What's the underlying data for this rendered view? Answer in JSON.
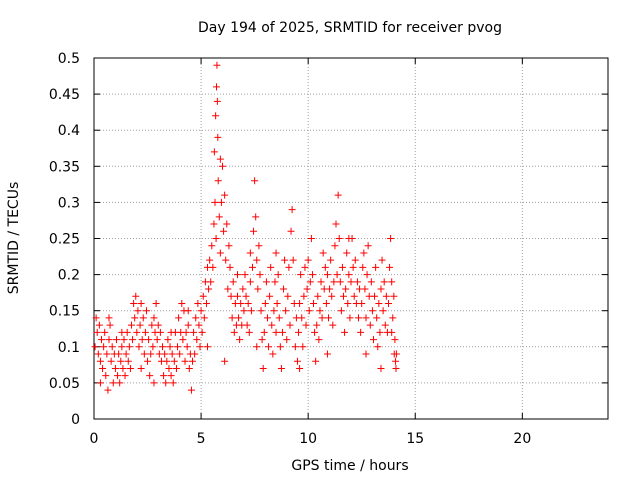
{
  "chart_data": {
    "type": "scatter",
    "title": "Day 194 of 2025, SRMTID for receiver pvog",
    "xlabel": "GPS time / hours",
    "ylabel": "SRMTID / TECUs",
    "xlim": [
      0,
      24
    ],
    "ylim": [
      0,
      0.5
    ],
    "xticks": [
      0,
      5,
      10,
      15,
      20
    ],
    "xtick_labels": [
      "0",
      "5",
      "10",
      "15",
      "20"
    ],
    "yticks": [
      0,
      0.05,
      0.1,
      0.15,
      0.2,
      0.25,
      0.3,
      0.35,
      0.4,
      0.45,
      0.5
    ],
    "ytick_labels": [
      "0",
      "0.05",
      "0.1",
      "0.15",
      "0.2",
      "0.25",
      "0.3",
      "0.35",
      "0.4",
      "0.45",
      "0.5"
    ],
    "grid": true,
    "marker": "+",
    "series": [
      {
        "name": "SRMTID",
        "color": "#ff0000",
        "points": [
          [
            0.05,
            0.1
          ],
          [
            0.1,
            0.14
          ],
          [
            0.15,
            0.12
          ],
          [
            0.2,
            0.09
          ],
          [
            0.25,
            0.13
          ],
          [
            0.3,
            0.08
          ],
          [
            0.35,
            0.11
          ],
          [
            0.4,
            0.07
          ],
          [
            0.45,
            0.1
          ],
          [
            0.5,
            0.12
          ],
          [
            0.55,
            0.06
          ],
          [
            0.6,
            0.09
          ],
          [
            0.65,
            0.04
          ],
          [
            0.7,
            0.11
          ],
          [
            0.75,
            0.13
          ],
          [
            0.8,
            0.08
          ],
          [
            0.85,
            0.1
          ],
          [
            0.9,
            0.05
          ],
          [
            0.95,
            0.09
          ],
          [
            1.0,
            0.07
          ],
          [
            1.05,
            0.11
          ],
          [
            1.1,
            0.06
          ],
          [
            1.15,
            0.09
          ],
          [
            1.2,
            0.05
          ],
          [
            1.25,
            0.08
          ],
          [
            1.3,
            0.1
          ],
          [
            1.35,
            0.07
          ],
          [
            1.4,
            0.11
          ],
          [
            1.45,
            0.06
          ],
          [
            1.5,
            0.09
          ],
          [
            1.55,
            0.12
          ],
          [
            1.6,
            0.08
          ],
          [
            1.65,
            0.1
          ],
          [
            1.7,
            0.07
          ],
          [
            1.75,
            0.13
          ],
          [
            1.8,
            0.11
          ],
          [
            1.85,
            0.16
          ],
          [
            1.9,
            0.14
          ],
          [
            1.95,
            0.17
          ],
          [
            2.0,
            0.12
          ],
          [
            2.05,
            0.15
          ],
          [
            2.1,
            0.1
          ],
          [
            2.15,
            0.13
          ],
          [
            2.2,
            0.16
          ],
          [
            2.25,
            0.11
          ],
          [
            2.3,
            0.14
          ],
          [
            2.35,
            0.09
          ],
          [
            2.4,
            0.12
          ],
          [
            2.45,
            0.15
          ],
          [
            2.5,
            0.08
          ],
          [
            2.55,
            0.11
          ],
          [
            2.6,
            0.06
          ],
          [
            2.65,
            0.09
          ],
          [
            2.7,
            0.13
          ],
          [
            2.75,
            0.1
          ],
          [
            2.8,
            0.14
          ],
          [
            2.85,
            0.12
          ],
          [
            2.9,
            0.16
          ],
          [
            2.95,
            0.11
          ],
          [
            3.0,
            0.13
          ],
          [
            3.05,
            0.09
          ],
          [
            3.1,
            0.12
          ],
          [
            3.15,
            0.08
          ],
          [
            3.2,
            0.1
          ],
          [
            3.25,
            0.06
          ],
          [
            3.3,
            0.09
          ],
          [
            3.35,
            0.05
          ],
          [
            3.4,
            0.08
          ],
          [
            3.45,
            0.11
          ],
          [
            3.5,
            0.07
          ],
          [
            3.55,
            0.1
          ],
          [
            3.6,
            0.06
          ],
          [
            3.65,
            0.09
          ],
          [
            3.7,
            0.05
          ],
          [
            3.75,
            0.08
          ],
          [
            3.8,
            0.12
          ],
          [
            3.85,
            0.07
          ],
          [
            3.9,
            0.1
          ],
          [
            3.95,
            0.14
          ],
          [
            4.0,
            0.09
          ],
          [
            4.05,
            0.12
          ],
          [
            4.1,
            0.16
          ],
          [
            4.15,
            0.11
          ],
          [
            4.2,
            0.15
          ],
          [
            4.25,
            0.08
          ],
          [
            4.3,
            0.12
          ],
          [
            4.35,
            0.1
          ],
          [
            4.4,
            0.13
          ],
          [
            4.45,
            0.07
          ],
          [
            4.5,
            0.09
          ],
          [
            4.55,
            0.04
          ],
          [
            4.6,
            0.08
          ],
          [
            4.65,
            0.12
          ],
          [
            4.7,
            0.09
          ],
          [
            4.75,
            0.14
          ],
          [
            4.8,
            0.11
          ],
          [
            4.85,
            0.16
          ],
          [
            4.9,
            0.13
          ],
          [
            4.95,
            0.1
          ],
          [
            5.0,
            0.15
          ],
          [
            5.05,
            0.12
          ],
          [
            5.1,
            0.17
          ],
          [
            5.15,
            0.14
          ],
          [
            5.2,
            0.19
          ],
          [
            5.25,
            0.16
          ],
          [
            5.3,
            0.21
          ],
          [
            5.35,
            0.18
          ],
          [
            5.4,
            0.22
          ],
          [
            5.45,
            0.19
          ],
          [
            5.5,
            0.24
          ],
          [
            5.55,
            0.21
          ],
          [
            5.6,
            0.27
          ],
          [
            5.62,
            0.37
          ],
          [
            5.65,
            0.3
          ],
          [
            5.68,
            0.42
          ],
          [
            5.7,
            0.25
          ],
          [
            5.72,
            0.46
          ],
          [
            5.74,
            0.49
          ],
          [
            5.76,
            0.44
          ],
          [
            5.78,
            0.39
          ],
          [
            5.8,
            0.33
          ],
          [
            5.85,
            0.28
          ],
          [
            5.9,
            0.23
          ],
          [
            5.95,
            0.3
          ],
          [
            6.0,
            0.35
          ],
          [
            6.05,
            0.26
          ],
          [
            6.1,
            0.31
          ],
          [
            6.15,
            0.22
          ],
          [
            6.2,
            0.27
          ],
          [
            6.25,
            0.18
          ],
          [
            6.3,
            0.24
          ],
          [
            6.35,
            0.21
          ],
          [
            6.4,
            0.17
          ],
          [
            6.45,
            0.14
          ],
          [
            6.5,
            0.19
          ],
          [
            6.55,
            0.12
          ],
          [
            6.6,
            0.16
          ],
          [
            6.65,
            0.13
          ],
          [
            6.7,
            0.17
          ],
          [
            6.75,
            0.14
          ],
          [
            6.8,
            0.11
          ],
          [
            6.85,
            0.16
          ],
          [
            6.9,
            0.13
          ],
          [
            6.95,
            0.18
          ],
          [
            7.0,
            0.15
          ],
          [
            7.05,
            0.2
          ],
          [
            7.1,
            0.17
          ],
          [
            7.15,
            0.13
          ],
          [
            7.2,
            0.16
          ],
          [
            7.25,
            0.12
          ],
          [
            7.3,
            0.19
          ],
          [
            7.35,
            0.15
          ],
          [
            7.4,
            0.21
          ],
          [
            7.45,
            0.26
          ],
          [
            7.5,
            0.33
          ],
          [
            7.55,
            0.28
          ],
          [
            7.6,
            0.22
          ],
          [
            7.65,
            0.18
          ],
          [
            7.7,
            0.24
          ],
          [
            7.75,
            0.2
          ],
          [
            7.8,
            0.15
          ],
          [
            7.85,
            0.11
          ],
          [
            7.9,
            0.07
          ],
          [
            7.95,
            0.12
          ],
          [
            8.0,
            0.16
          ],
          [
            8.05,
            0.19
          ],
          [
            8.1,
            0.14
          ],
          [
            8.15,
            0.1
          ],
          [
            8.2,
            0.17
          ],
          [
            8.25,
            0.21
          ],
          [
            8.3,
            0.13
          ],
          [
            8.35,
            0.09
          ],
          [
            8.4,
            0.15
          ],
          [
            8.45,
            0.19
          ],
          [
            8.5,
            0.12
          ],
          [
            8.55,
            0.16
          ],
          [
            8.6,
            0.2
          ],
          [
            8.65,
            0.14
          ],
          [
            8.7,
            0.1
          ],
          [
            8.75,
            0.07
          ],
          [
            8.8,
            0.12
          ],
          [
            8.85,
            0.18
          ],
          [
            8.9,
            0.22
          ],
          [
            8.95,
            0.15
          ],
          [
            9.0,
            0.11
          ],
          [
            9.05,
            0.17
          ],
          [
            9.1,
            0.21
          ],
          [
            9.15,
            0.13
          ],
          [
            9.2,
            0.26
          ],
          [
            9.25,
            0.29
          ],
          [
            9.3,
            0.22
          ],
          [
            9.35,
            0.16
          ],
          [
            9.4,
            0.1
          ],
          [
            9.45,
            0.14
          ],
          [
            9.5,
            0.08
          ],
          [
            9.55,
            0.12
          ],
          [
            9.6,
            0.16
          ],
          [
            9.65,
            0.2
          ],
          [
            9.7,
            0.14
          ],
          [
            9.75,
            0.1
          ],
          [
            9.8,
            0.17
          ],
          [
            9.85,
            0.21
          ],
          [
            9.9,
            0.13
          ],
          [
            9.95,
            0.18
          ],
          [
            10.0,
            0.22
          ],
          [
            10.05,
            0.15
          ],
          [
            10.1,
            0.19
          ],
          [
            10.15,
            0.25
          ],
          [
            10.2,
            0.2
          ],
          [
            10.25,
            0.16
          ],
          [
            10.3,
            0.12
          ],
          [
            10.35,
            0.08
          ],
          [
            10.4,
            0.13
          ],
          [
            10.45,
            0.17
          ],
          [
            10.5,
            0.11
          ],
          [
            10.55,
            0.15
          ],
          [
            10.6,
            0.19
          ],
          [
            10.65,
            0.14
          ],
          [
            10.7,
            0.23
          ],
          [
            10.75,
            0.18
          ],
          [
            10.8,
            0.21
          ],
          [
            10.85,
            0.16
          ],
          [
            10.9,
            0.2
          ],
          [
            10.95,
            0.14
          ],
          [
            11.0,
            0.18
          ],
          [
            11.05,
            0.22
          ],
          [
            11.1,
            0.17
          ],
          [
            11.15,
            0.13
          ],
          [
            11.2,
            0.19
          ],
          [
            11.25,
            0.24
          ],
          [
            11.3,
            0.27
          ],
          [
            11.35,
            0.2
          ],
          [
            11.4,
            0.31
          ],
          [
            11.45,
            0.25
          ],
          [
            11.5,
            0.19
          ],
          [
            11.55,
            0.15
          ],
          [
            11.6,
            0.21
          ],
          [
            11.65,
            0.17
          ],
          [
            11.7,
            0.12
          ],
          [
            11.75,
            0.18
          ],
          [
            11.8,
            0.23
          ],
          [
            11.85,
            0.16
          ],
          [
            11.9,
            0.2
          ],
          [
            11.95,
            0.14
          ],
          [
            12.0,
            0.19
          ],
          [
            12.05,
            0.25
          ],
          [
            12.1,
            0.21
          ],
          [
            12.15,
            0.17
          ],
          [
            12.2,
            0.22
          ],
          [
            12.25,
            0.16
          ],
          [
            12.3,
            0.19
          ],
          [
            12.35,
            0.14
          ],
          [
            12.4,
            0.18
          ],
          [
            12.45,
            0.12
          ],
          [
            12.5,
            0.16
          ],
          [
            12.55,
            0.21
          ],
          [
            12.6,
            0.23
          ],
          [
            12.65,
            0.18
          ],
          [
            12.7,
            0.14
          ],
          [
            12.75,
            0.2
          ],
          [
            12.8,
            0.24
          ],
          [
            12.85,
            0.17
          ],
          [
            12.9,
            0.13
          ],
          [
            12.95,
            0.19
          ],
          [
            13.0,
            0.15
          ],
          [
            13.05,
            0.11
          ],
          [
            13.1,
            0.17
          ],
          [
            13.15,
            0.21
          ],
          [
            13.2,
            0.14
          ],
          [
            13.25,
            0.1
          ],
          [
            13.3,
            0.16
          ],
          [
            13.35,
            0.12
          ],
          [
            13.4,
            0.18
          ],
          [
            13.45,
            0.22
          ],
          [
            13.5,
            0.15
          ],
          [
            13.55,
            0.19
          ],
          [
            13.6,
            0.13
          ],
          [
            13.65,
            0.17
          ],
          [
            13.7,
            0.12
          ],
          [
            13.75,
            0.16
          ],
          [
            13.8,
            0.21
          ],
          [
            13.85,
            0.25
          ],
          [
            13.9,
            0.19
          ],
          [
            13.95,
            0.14
          ],
          [
            14.0,
            0.17
          ],
          [
            14.02,
            0.09
          ],
          [
            14.05,
            0.11
          ],
          [
            14.08,
            0.08
          ],
          [
            14.1,
            0.07
          ],
          [
            14.12,
            0.09
          ],
          [
            0.3,
            0.05
          ],
          [
            0.7,
            0.14
          ],
          [
            1.3,
            0.12
          ],
          [
            2.2,
            0.07
          ],
          [
            2.8,
            0.05
          ],
          [
            3.6,
            0.12
          ],
          [
            4.4,
            0.15
          ],
          [
            5.3,
            0.1
          ],
          [
            6.7,
            0.2
          ],
          [
            7.6,
            0.1
          ],
          [
            8.5,
            0.23
          ],
          [
            9.6,
            0.07
          ],
          [
            10.9,
            0.09
          ],
          [
            11.9,
            0.25
          ],
          [
            12.7,
            0.09
          ],
          [
            13.4,
            0.07
          ],
          [
            13.9,
            0.12
          ],
          [
            6.1,
            0.08
          ],
          [
            7.3,
            0.23
          ],
          [
            5.9,
            0.36
          ]
        ]
      }
    ]
  }
}
